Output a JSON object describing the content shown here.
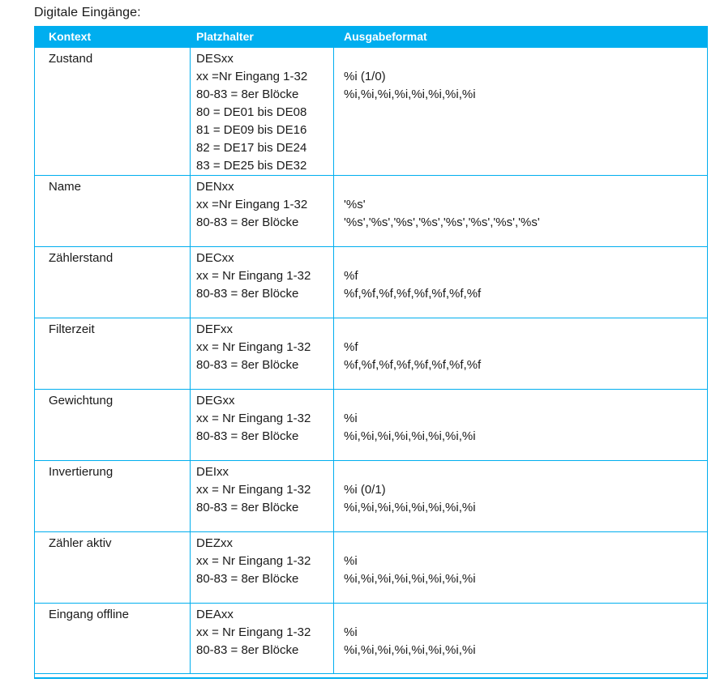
{
  "page": {
    "title": "Digitale Eingänge:"
  },
  "colors": {
    "accent": "#00AEEF",
    "header_text": "#FFFFFF",
    "body_text": "#1A1A1A"
  },
  "table": {
    "headers": [
      "Kontext",
      "Platzhalter",
      "Ausgabeformat"
    ],
    "rows": [
      {
        "kontext": "Zustand",
        "platzhalter": [
          "DESxx",
          "xx =Nr Eingang 1-32",
          "80-83 = 8er Blöcke",
          "80 = DE01 bis DE08",
          "81 = DE09 bis DE16",
          "82 = DE17 bis DE24",
          "83 = DE25 bis DE32"
        ],
        "ausgabeformat": [
          "",
          "%i (1/0)",
          "%i,%i,%i,%i,%i,%i,%i,%i"
        ]
      },
      {
        "kontext": "Name",
        "platzhalter": [
          "DENxx",
          "xx =Nr Eingang 1-32",
          "80-83 = 8er Blöcke"
        ],
        "ausgabeformat": [
          "",
          "'%s'",
          "'%s','%s','%s','%s','%s','%s','%s','%s'"
        ]
      },
      {
        "kontext": "Zählerstand",
        "platzhalter": [
          "DECxx",
          "xx = Nr Eingang 1-32",
          "80-83 = 8er Blöcke"
        ],
        "ausgabeformat": [
          "",
          "%f",
          "%f,%f,%f,%f,%f,%f,%f,%f"
        ]
      },
      {
        "kontext": "Filterzeit",
        "platzhalter": [
          "DEFxx",
          "xx = Nr Eingang 1-32",
          "80-83 = 8er Blöcke"
        ],
        "ausgabeformat": [
          "",
          "%f",
          "%f,%f,%f,%f,%f,%f,%f,%f"
        ]
      },
      {
        "kontext": "Gewichtung",
        "platzhalter": [
          "DEGxx",
          "xx = Nr Eingang 1-32",
          "80-83 = 8er Blöcke"
        ],
        "ausgabeformat": [
          "",
          "%i",
          "%i,%i,%i,%i,%i,%i,%i,%i"
        ]
      },
      {
        "kontext": "Invertierung",
        "platzhalter": [
          "DEIxx",
          "xx = Nr Eingang 1-32",
          "80-83 = 8er Blöcke"
        ],
        "ausgabeformat": [
          "",
          "%i (0/1)",
          "%i,%i,%i,%i,%i,%i,%i,%i"
        ]
      },
      {
        "kontext": "Zähler aktiv",
        "platzhalter": [
          "DEZxx",
          "xx = Nr Eingang 1-32",
          "80-83 = 8er Blöcke"
        ],
        "ausgabeformat": [
          "",
          "%i",
          "%i,%i,%i,%i,%i,%i,%i,%i"
        ]
      },
      {
        "kontext": "Eingang offline",
        "platzhalter": [
          "DEAxx",
          "xx = Nr Eingang 1-32",
          "80-83 = 8er Blöcke"
        ],
        "ausgabeformat": [
          "",
          "%i",
          "%i,%i,%i,%i,%i,%i,%i,%i"
        ]
      }
    ]
  }
}
